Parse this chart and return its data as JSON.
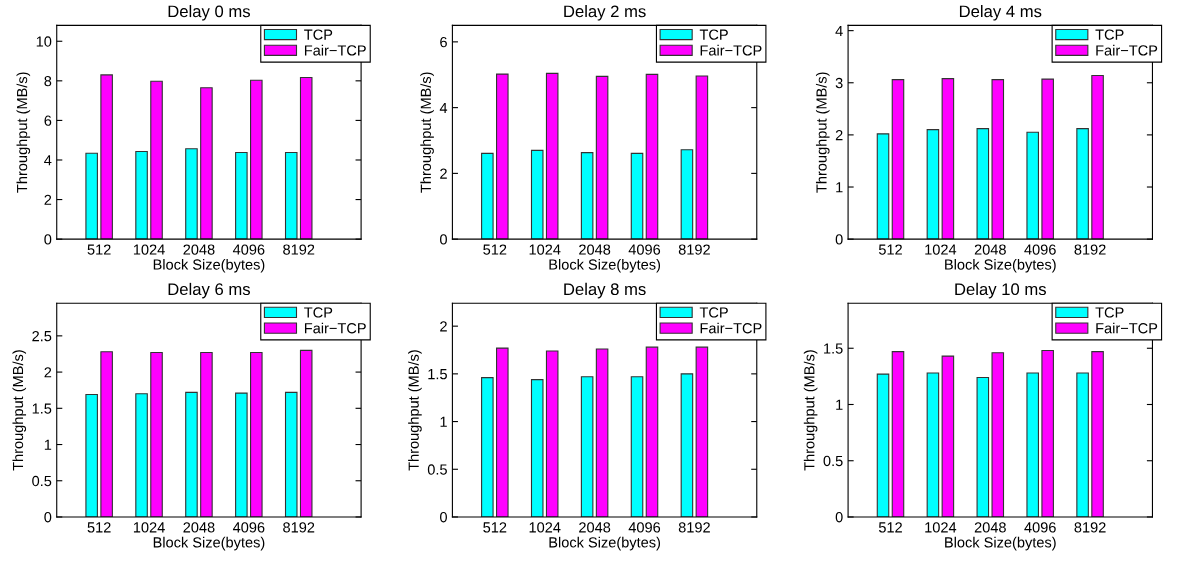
{
  "chart_data": [
    {
      "type": "bar",
      "title": "Delay 0 ms",
      "xlabel": "Block Size(bytes)",
      "ylabel": "Throughput (MB/s)",
      "categories": [
        "512",
        "1024",
        "2048",
        "4096",
        "8192"
      ],
      "ylim": [
        0,
        10.8
      ],
      "yticks": [
        0,
        2,
        4,
        6,
        8,
        10
      ],
      "legend": "top right",
      "grid": false,
      "series": [
        {
          "name": "TCP",
          "color": "#00ffff",
          "values": [
            4.34,
            4.43,
            4.57,
            4.38,
            4.38
          ]
        },
        {
          "name": "Fair−TCP",
          "color": "#ff00ff",
          "values": [
            8.3,
            7.98,
            7.65,
            8.03,
            8.17
          ]
        }
      ]
    },
    {
      "type": "bar",
      "title": "Delay 2 ms",
      "xlabel": "Block Size(bytes)",
      "ylabel": "Throughput (MB/s)",
      "categories": [
        "512",
        "1024",
        "2048",
        "4096",
        "8192"
      ],
      "ylim": [
        0,
        6.5
      ],
      "yticks": [
        0,
        2,
        4,
        6
      ],
      "legend": "top right",
      "grid": false,
      "series": [
        {
          "name": "TCP",
          "color": "#00ffff",
          "values": [
            2.61,
            2.7,
            2.63,
            2.61,
            2.72
          ]
        },
        {
          "name": "Fair−TCP",
          "color": "#ff00ff",
          "values": [
            5.02,
            5.04,
            4.95,
            5.01,
            4.96
          ]
        }
      ]
    },
    {
      "type": "bar",
      "title": "Delay 4 ms",
      "xlabel": "Block Size(bytes)",
      "ylabel": "Throughput (MB/s)",
      "categories": [
        "512",
        "1024",
        "2048",
        "4096",
        "8192"
      ],
      "ylim": [
        0,
        4.1
      ],
      "yticks": [
        0,
        1,
        2,
        3,
        4
      ],
      "legend": "top right",
      "grid": false,
      "series": [
        {
          "name": "TCP",
          "color": "#00ffff",
          "values": [
            2.02,
            2.1,
            2.12,
            2.05,
            2.12
          ]
        },
        {
          "name": "Fair−TCP",
          "color": "#ff00ff",
          "values": [
            3.06,
            3.08,
            3.06,
            3.07,
            3.14
          ]
        }
      ]
    },
    {
      "type": "bar",
      "title": "Delay 6 ms",
      "xlabel": "Block Size(bytes)",
      "ylabel": "Throughput (MB/s)",
      "categories": [
        "512",
        "1024",
        "2048",
        "4096",
        "8192"
      ],
      "ylim": [
        0,
        2.95
      ],
      "yticks": [
        0,
        0.5,
        1,
        1.5,
        2,
        2.5
      ],
      "legend": "top right",
      "grid": false,
      "series": [
        {
          "name": "TCP",
          "color": "#00ffff",
          "values": [
            1.69,
            1.7,
            1.72,
            1.71,
            1.72
          ]
        },
        {
          "name": "Fair−TCP",
          "color": "#ff00ff",
          "values": [
            2.28,
            2.27,
            2.27,
            2.27,
            2.3
          ]
        }
      ]
    },
    {
      "type": "bar",
      "title": "Delay 8 ms",
      "xlabel": "Block Size(bytes)",
      "ylabel": "Throughput (MB/s)",
      "categories": [
        "512",
        "1024",
        "2048",
        "4096",
        "8192"
      ],
      "ylim": [
        0,
        2.24
      ],
      "yticks": [
        0,
        0.5,
        1,
        1.5,
        2
      ],
      "legend": "top right",
      "grid": false,
      "series": [
        {
          "name": "TCP",
          "color": "#00ffff",
          "values": [
            1.46,
            1.44,
            1.47,
            1.47,
            1.5
          ]
        },
        {
          "name": "Fair−TCP",
          "color": "#ff00ff",
          "values": [
            1.77,
            1.74,
            1.76,
            1.78,
            1.78
          ]
        }
      ]
    },
    {
      "type": "bar",
      "title": "Delay 10 ms",
      "xlabel": "Block Size(bytes)",
      "ylabel": "Throughput (MB/s)",
      "categories": [
        "512",
        "1024",
        "2048",
        "4096",
        "8192"
      ],
      "ylim": [
        0,
        1.9
      ],
      "yticks": [
        0,
        0.5,
        1,
        1.5
      ],
      "legend": "top right",
      "grid": false,
      "series": [
        {
          "name": "TCP",
          "color": "#00ffff",
          "values": [
            1.27,
            1.28,
            1.24,
            1.28,
            1.28
          ]
        },
        {
          "name": "Fair−TCP",
          "color": "#ff00ff",
          "values": [
            1.47,
            1.43,
            1.46,
            1.48,
            1.47
          ]
        }
      ]
    }
  ]
}
